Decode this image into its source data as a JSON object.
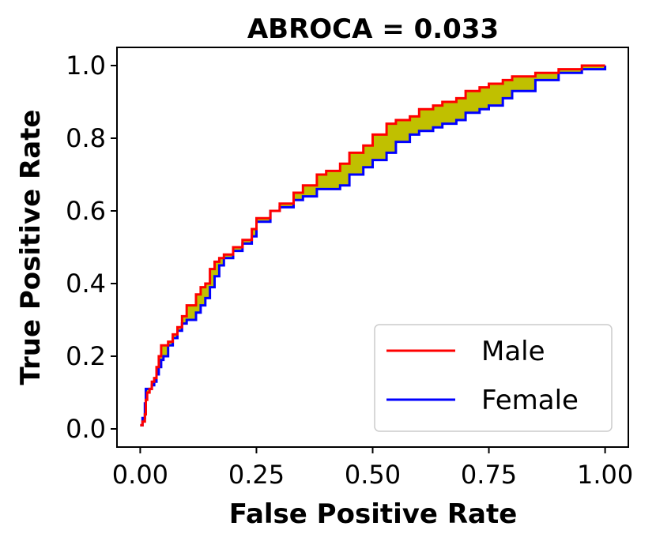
{
  "chart_data": {
    "type": "line",
    "title": "ABROCA = 0.033",
    "xlabel": "False Positive Rate",
    "ylabel": "True Positive Rate",
    "xlim": [
      -0.05,
      1.05
    ],
    "ylim": [
      -0.05,
      1.05
    ],
    "xticks": [
      0.0,
      0.25,
      0.5,
      0.75,
      1.0
    ],
    "xtick_labels": [
      "0.00",
      "0.25",
      "0.50",
      "0.75",
      "1.00"
    ],
    "yticks": [
      0.0,
      0.2,
      0.4,
      0.6,
      0.8,
      1.0
    ],
    "ytick_labels": [
      "0.0",
      "0.2",
      "0.4",
      "0.6",
      "0.8",
      "1.0"
    ],
    "grid": false,
    "legend_position": "lower-right",
    "fill_color": "#c0c000",
    "series": [
      {
        "name": "Male",
        "color": "#ff0000",
        "x": [
          0.0,
          0.005,
          0.01,
          0.012,
          0.015,
          0.02,
          0.025,
          0.03,
          0.035,
          0.04,
          0.045,
          0.05,
          0.06,
          0.07,
          0.08,
          0.09,
          0.1,
          0.12,
          0.13,
          0.14,
          0.15,
          0.16,
          0.17,
          0.18,
          0.2,
          0.22,
          0.24,
          0.25,
          0.28,
          0.3,
          0.33,
          0.35,
          0.38,
          0.4,
          0.43,
          0.45,
          0.48,
          0.5,
          0.53,
          0.55,
          0.58,
          0.6,
          0.63,
          0.65,
          0.68,
          0.7,
          0.73,
          0.75,
          0.78,
          0.8,
          0.85,
          0.9,
          0.95,
          0.98,
          1.0
        ],
        "y": [
          0.01,
          0.02,
          0.04,
          0.08,
          0.1,
          0.11,
          0.13,
          0.14,
          0.17,
          0.2,
          0.23,
          0.23,
          0.24,
          0.26,
          0.28,
          0.31,
          0.34,
          0.37,
          0.39,
          0.4,
          0.44,
          0.46,
          0.47,
          0.48,
          0.5,
          0.52,
          0.55,
          0.58,
          0.6,
          0.62,
          0.65,
          0.67,
          0.7,
          0.71,
          0.73,
          0.76,
          0.78,
          0.81,
          0.84,
          0.85,
          0.86,
          0.88,
          0.89,
          0.9,
          0.91,
          0.93,
          0.94,
          0.95,
          0.96,
          0.97,
          0.98,
          0.99,
          1.0,
          1.0,
          1.0
        ]
      },
      {
        "name": "Female",
        "color": "#0000ff",
        "x": [
          0.0,
          0.005,
          0.01,
          0.012,
          0.015,
          0.02,
          0.025,
          0.03,
          0.035,
          0.04,
          0.045,
          0.05,
          0.06,
          0.07,
          0.08,
          0.09,
          0.1,
          0.12,
          0.13,
          0.14,
          0.15,
          0.16,
          0.17,
          0.18,
          0.2,
          0.22,
          0.24,
          0.25,
          0.28,
          0.3,
          0.33,
          0.35,
          0.38,
          0.4,
          0.43,
          0.45,
          0.48,
          0.5,
          0.53,
          0.55,
          0.58,
          0.6,
          0.63,
          0.65,
          0.68,
          0.7,
          0.73,
          0.75,
          0.78,
          0.8,
          0.85,
          0.9,
          0.95,
          0.98,
          1.0
        ],
        "y": [
          0.01,
          0.03,
          0.07,
          0.11,
          0.11,
          0.11,
          0.12,
          0.13,
          0.15,
          0.17,
          0.19,
          0.2,
          0.23,
          0.25,
          0.27,
          0.29,
          0.3,
          0.32,
          0.34,
          0.36,
          0.39,
          0.42,
          0.45,
          0.47,
          0.49,
          0.51,
          0.53,
          0.57,
          0.6,
          0.61,
          0.63,
          0.64,
          0.66,
          0.66,
          0.67,
          0.7,
          0.72,
          0.74,
          0.76,
          0.79,
          0.81,
          0.82,
          0.83,
          0.84,
          0.85,
          0.87,
          0.88,
          0.89,
          0.91,
          0.93,
          0.96,
          0.98,
          0.99,
          0.99,
          1.0
        ]
      }
    ]
  }
}
